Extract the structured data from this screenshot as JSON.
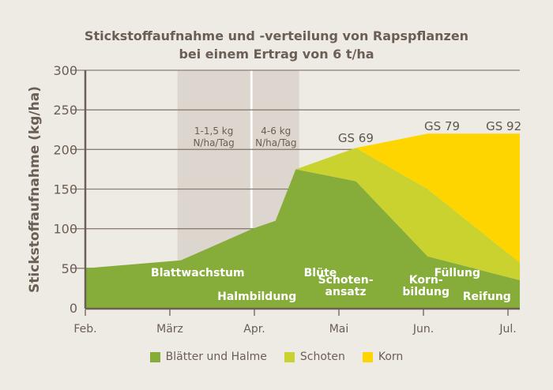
{
  "chart_data": {
    "type": "area",
    "title": "Stickstoffaufnahme und -verteilung von Rapspflanzen",
    "subtitle": "bei einem Ertrag von 6 t/ha",
    "ylabel": "Stickstoffaufnahme (kg/ha)",
    "xlabel": "",
    "ylim": [
      0,
      300
    ],
    "yticks": [
      0,
      50,
      100,
      150,
      200,
      250,
      300
    ],
    "xticks": [
      "Feb.",
      "März",
      "Apr.",
      "Mai",
      "Jun.",
      "Jul."
    ],
    "x_unit_note_months_from_feb": true,
    "xlim": [
      0,
      5.14
    ],
    "grid": true,
    "legend_position": "bottom",
    "stacked": true,
    "x": [
      0,
      1.13,
      1.98,
      2.25,
      2.49,
      3.2,
      4.05,
      5.14
    ],
    "series": [
      {
        "name": "Blätter und Halme",
        "color": "#86ad3a",
        "values": [
          50,
          60,
          100,
          110,
          175,
          160,
          65,
          35
        ]
      },
      {
        "name": "Schoten",
        "color": "#c9d22f",
        "values": [
          0,
          0,
          0,
          0,
          0,
          42,
          85,
          22
        ]
      },
      {
        "name": "Korn",
        "color": "#ffd500",
        "values": [
          0,
          0,
          0,
          0,
          0,
          0,
          70,
          163
        ]
      }
    ],
    "bands": [
      {
        "from": 1.09,
        "to": 1.95,
        "label": [
          "1-1,5 kg",
          "N/ha/Tag"
        ]
      },
      {
        "from": 1.98,
        "to": 2.53,
        "label": [
          "4-6 kg",
          "N/ha/Tag"
        ]
      }
    ],
    "band_color": "#ddd6ce",
    "growth_stages": [
      {
        "label": "GS 69",
        "x": 3.2
      },
      {
        "label": "GS 79",
        "x": 4.22
      },
      {
        "label": "GS 92",
        "x": 4.95
      }
    ],
    "phase_labels": [
      {
        "lines": [
          "Blattwachstum"
        ],
        "x": 1.33,
        "y": 45
      },
      {
        "lines": [
          "Halmbildung"
        ],
        "x": 2.03,
        "y": 15
      },
      {
        "lines": [
          "Blüte"
        ],
        "x": 2.78,
        "y": 45
      },
      {
        "lines": [
          "Schoten-",
          "ansatz"
        ],
        "x": 3.08,
        "y": 28
      },
      {
        "lines": [
          "Korn-",
          "bildung"
        ],
        "x": 4.03,
        "y": 28
      },
      {
        "lines": [
          "Füllung"
        ],
        "x": 4.4,
        "y": 45
      },
      {
        "lines": [
          "Reifung"
        ],
        "x": 4.75,
        "y": 15
      }
    ]
  }
}
